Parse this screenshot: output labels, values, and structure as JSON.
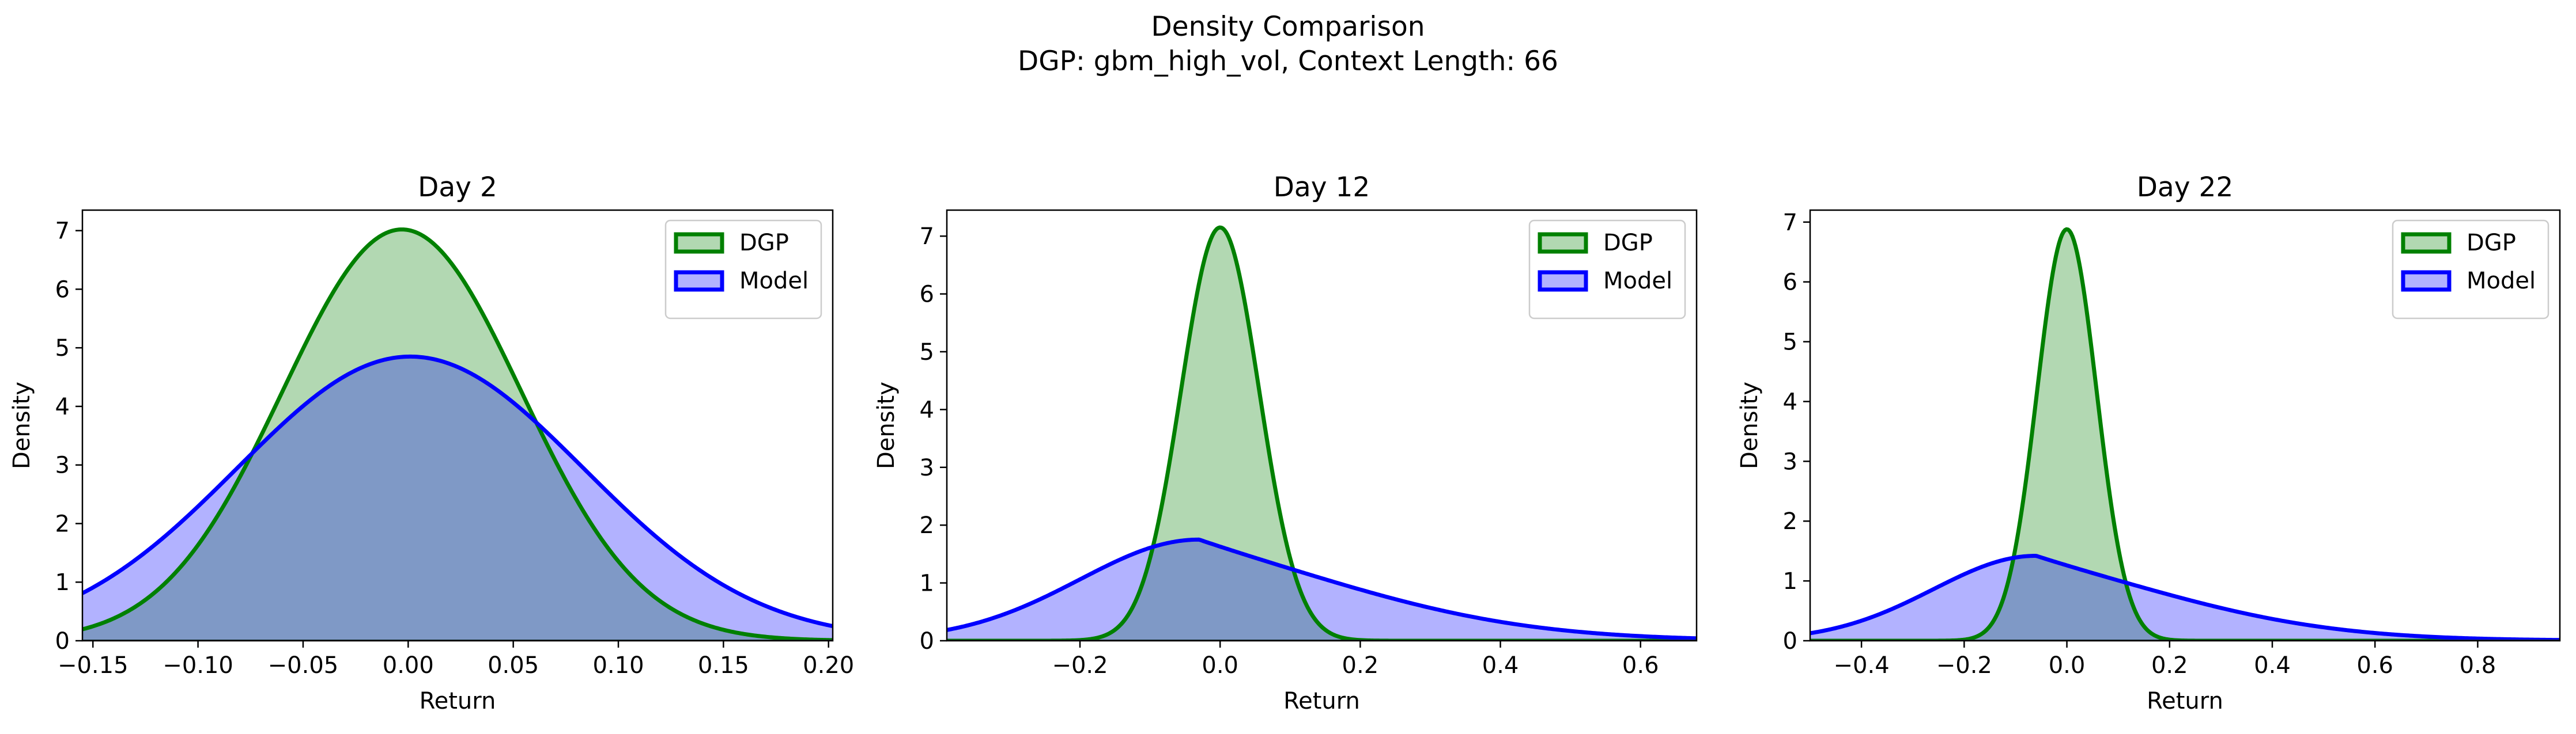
{
  "figure": {
    "title_line1": "Density Comparison",
    "title_line2": "DGP: gbm_high_vol, Context Length: 66"
  },
  "colors": {
    "dgp_line": "#008000",
    "dgp_fill": "#b2d8b2",
    "model_line": "#0000ff",
    "model_fill": "#b2b2ff",
    "overlap_fill": "#7f99c6"
  },
  "chart_data": [
    {
      "type": "area",
      "title": "Day 2",
      "xlabel": "Return",
      "ylabel": "Density",
      "xlim": [
        -0.155,
        0.202
      ],
      "ylim": [
        0,
        7.35
      ],
      "xticks": [
        -0.15,
        -0.1,
        -0.05,
        0.0,
        0.05,
        0.1,
        0.15,
        0.2
      ],
      "xtick_labels": [
        "−0.15",
        "−0.10",
        "−0.05",
        "0.00",
        "0.05",
        "0.10",
        "0.15",
        "0.20"
      ],
      "yticks": [
        0,
        1,
        2,
        3,
        4,
        5,
        6,
        7
      ],
      "ytick_labels": [
        "0",
        "1",
        "2",
        "3",
        "4",
        "5",
        "6",
        "7"
      ],
      "legend": {
        "position": "top-right",
        "entries": [
          "DGP",
          "Model"
        ]
      },
      "series": [
        {
          "name": "DGP",
          "distribution": "normal",
          "mean": -0.003,
          "std": 0.0568,
          "peak": 7.02
        },
        {
          "name": "Model",
          "distribution": "normal",
          "mean": 0.001,
          "std": 0.0825,
          "peak": 4.85
        }
      ]
    },
    {
      "type": "area",
      "title": "Day 12",
      "xlabel": "Return",
      "ylabel": "Density",
      "xlim": [
        -0.39,
        0.68
      ],
      "ylim": [
        0,
        7.45
      ],
      "xticks": [
        -0.2,
        0.0,
        0.2,
        0.4,
        0.6
      ],
      "xtick_labels": [
        "−0.2",
        "0.0",
        "0.2",
        "0.4",
        "0.6"
      ],
      "yticks": [
        0,
        1,
        2,
        3,
        4,
        5,
        6,
        7
      ],
      "ytick_labels": [
        "0",
        "1",
        "2",
        "3",
        "4",
        "5",
        "6",
        "7"
      ],
      "legend": {
        "position": "top-right",
        "entries": [
          "DGP",
          "Model"
        ]
      },
      "series": [
        {
          "name": "DGP",
          "distribution": "normal",
          "mean": 0.0,
          "std": 0.0557,
          "peak": 7.15
        },
        {
          "name": "Model",
          "distribution": "lognormal-skewed",
          "mode": -0.03,
          "peak": 1.75,
          "sigma_left": 0.17,
          "sigma_right": 0.26,
          "tail": 0.19
        }
      ]
    },
    {
      "type": "area",
      "title": "Day 22",
      "xlabel": "Return",
      "ylabel": "Density",
      "xlim": [
        -0.5,
        0.96
      ],
      "ylim": [
        0,
        7.2
      ],
      "xticks": [
        -0.4,
        -0.2,
        0.0,
        0.2,
        0.4,
        0.6,
        0.8
      ],
      "xtick_labels": [
        "−0.4",
        "−0.2",
        "0.0",
        "0.2",
        "0.4",
        "0.6",
        "0.8"
      ],
      "yticks": [
        0,
        1,
        2,
        3,
        4,
        5,
        6,
        7
      ],
      "ytick_labels": [
        "0",
        "1",
        "2",
        "3",
        "4",
        "5",
        "6",
        "7"
      ],
      "legend": {
        "position": "top-right",
        "entries": [
          "DGP",
          "Model"
        ]
      },
      "series": [
        {
          "name": "DGP",
          "distribution": "normal",
          "mean": 0.0,
          "std": 0.058,
          "peak": 6.88
        },
        {
          "name": "Model",
          "distribution": "lognormal-skewed",
          "mode": -0.06,
          "peak": 1.42,
          "sigma_left": 0.2,
          "sigma_right": 0.32,
          "tail": 0.23
        }
      ]
    }
  ]
}
